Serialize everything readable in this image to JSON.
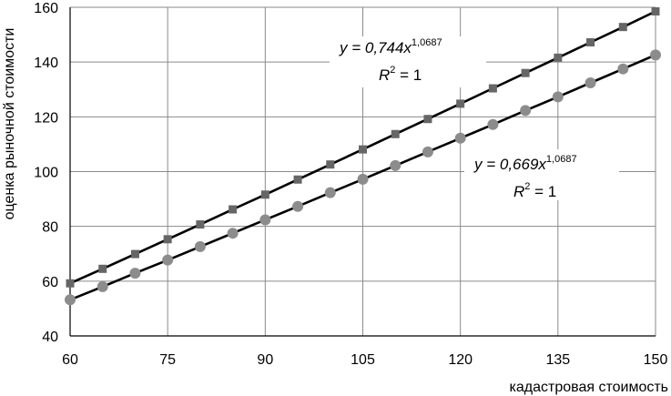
{
  "chart_data": {
    "type": "scatter",
    "title": "",
    "xlabel": "кадастровая стоимость",
    "ylabel": "оценка рыночной стоимости",
    "xlim": [
      60,
      150
    ],
    "ylim": [
      40,
      160
    ],
    "x_ticks": [
      "60",
      "75",
      "90",
      "105",
      "120",
      "135",
      "150"
    ],
    "y_ticks": [
      "40",
      "60",
      "80",
      "100",
      "120",
      "140",
      "160"
    ],
    "grid": true,
    "x": [
      60,
      65,
      70,
      75,
      80,
      85,
      90,
      95,
      100,
      105,
      110,
      115,
      120,
      125,
      130,
      135,
      140,
      145,
      150
    ],
    "series": [
      {
        "marker": "square",
        "color": "#666666",
        "trend_color": "#000000",
        "values": [
          59.2,
          64.5,
          69.9,
          75.3,
          80.7,
          86.2,
          91.6,
          97.1,
          102.6,
          108.1,
          113.7,
          119.2,
          124.8,
          130.4,
          136.0,
          141.6,
          147.2,
          152.8,
          158.5
        ],
        "equation": {
          "prefix": "y = 0,744x",
          "exponent": "1,0687",
          "r2_prefix": "R",
          "r2_exp": "2",
          "r2_suffix": " = 1"
        }
      },
      {
        "marker": "circle",
        "color": "#8c8c8c",
        "trend_color": "#000000",
        "values": [
          53.2,
          58.0,
          62.9,
          67.7,
          72.6,
          77.5,
          82.4,
          87.3,
          92.3,
          97.2,
          102.2,
          107.2,
          112.2,
          117.2,
          122.3,
          127.3,
          132.4,
          137.5,
          142.6
        ],
        "equation": {
          "prefix": "y = 0,669x",
          "exponent": "1,0687",
          "r2_prefix": "R",
          "r2_exp": "2",
          "r2_suffix": " = 1"
        }
      }
    ]
  }
}
